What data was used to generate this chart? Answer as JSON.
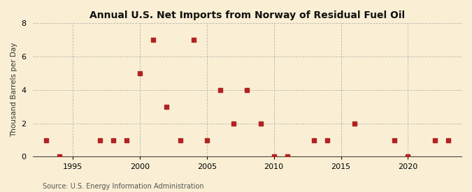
{
  "title": "Annual U.S. Net Imports from Norway of Residual Fuel Oil",
  "ylabel": "Thousand Barrels per Day",
  "source": "Source: U.S. Energy Information Administration",
  "years": [
    1993,
    1994,
    1997,
    1998,
    1999,
    2000,
    2001,
    2002,
    2003,
    2004,
    2005,
    2006,
    2007,
    2008,
    2009,
    2010,
    2011,
    2013,
    2014,
    2016,
    2019,
    2020,
    2022,
    2023
  ],
  "values": [
    1,
    0,
    1,
    1,
    1,
    5,
    7,
    3,
    1,
    7,
    1,
    4,
    2,
    4,
    2,
    0,
    0,
    1,
    1,
    2,
    1,
    0,
    1,
    1
  ],
  "marker_color": "#b22222",
  "marker_size": 16,
  "background_color": "#faefd4",
  "grid_color": "#aaaaaa",
  "xlim": [
    1992,
    2024
  ],
  "ylim": [
    0,
    8
  ],
  "yticks": [
    0,
    2,
    4,
    6,
    8
  ],
  "xticks": [
    1995,
    2000,
    2005,
    2010,
    2015,
    2020
  ],
  "title_fontsize": 10,
  "label_fontsize": 7.5,
  "tick_fontsize": 8,
  "source_fontsize": 7
}
